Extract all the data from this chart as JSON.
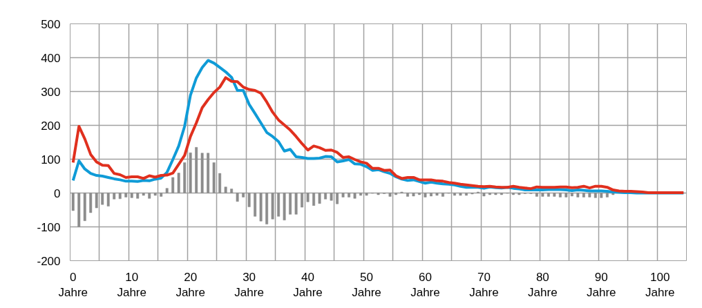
{
  "chart_data": {
    "type": "line",
    "categories": [
      "0 Jahre",
      null,
      null,
      null,
      null,
      null,
      null,
      null,
      null,
      null,
      "10 Jahre",
      null,
      null,
      null,
      null,
      null,
      null,
      null,
      null,
      null,
      "20 Jahre",
      null,
      null,
      null,
      null,
      null,
      null,
      null,
      null,
      null,
      "30 Jahre",
      null,
      null,
      null,
      null,
      null,
      null,
      null,
      null,
      null,
      "40 Jahre",
      null,
      null,
      null,
      null,
      null,
      null,
      null,
      null,
      null,
      "50 Jahre",
      null,
      null,
      null,
      null,
      null,
      null,
      null,
      null,
      null,
      "60 Jahre",
      null,
      null,
      null,
      null,
      null,
      null,
      null,
      null,
      null,
      "70 Jahre",
      null,
      null,
      null,
      null,
      null,
      null,
      null,
      null,
      null,
      "80 Jahre",
      null,
      null,
      null,
      null,
      null,
      null,
      null,
      null,
      null,
      "90 Jahre",
      null,
      null,
      null,
      null,
      null,
      null,
      null,
      null,
      null,
      "100 Jahre",
      null,
      null,
      null,
      null
    ],
    "ylim": [
      -200,
      500
    ],
    "yticks": [
      -200,
      -100,
      0,
      100,
      200,
      300,
      400,
      500
    ],
    "grid": true,
    "series": [
      {
        "type": "bar",
        "color": "#8c8c8c",
        "values": [
          -52,
          -100,
          -82,
          -58,
          -44,
          -34,
          -39,
          -18,
          -17,
          -12,
          -14,
          -16,
          -7,
          -16,
          -7,
          -10,
          14,
          46,
          59,
          90,
          119,
          135,
          118,
          118,
          90,
          58,
          18,
          12,
          -25,
          -12,
          -41,
          -69,
          -83,
          -92,
          -77,
          -69,
          -80,
          -63,
          -63,
          -42,
          -26,
          -37,
          -31,
          -18,
          -22,
          -32,
          -12,
          -12,
          -16,
          -7,
          -7,
          -1,
          -5,
          -2,
          -10,
          -5,
          3,
          -10,
          -9,
          -5,
          -12,
          -9,
          -7,
          -10,
          -1,
          -7,
          -7,
          -7,
          -3,
          3,
          -9,
          -5,
          -5,
          -5,
          -1,
          -5,
          -5,
          -2,
          -2,
          -10,
          -10,
          -10,
          -10,
          -12,
          -12,
          -9,
          -12,
          -12,
          -12,
          -14,
          -14,
          -12,
          -5,
          null,
          null,
          0,
          0,
          0,
          0,
          0,
          0,
          0,
          0,
          0,
          0
        ]
      },
      {
        "color": "#0f9bd7",
        "values": [
          37,
          95,
          71,
          58,
          52,
          50,
          46,
          42,
          39,
          35,
          35,
          34,
          37,
          36,
          41,
          44,
          61,
          99,
          139,
          197,
          289,
          340,
          371,
          392,
          384,
          371,
          358,
          342,
          303,
          303,
          262,
          235,
          207,
          179,
          167,
          152,
          124,
          129,
          107,
          105,
          102,
          102,
          103,
          108,
          107,
          92,
          95,
          99,
          86,
          85,
          78,
          67,
          69,
          63,
          58,
          48,
          41,
          37,
          39,
          34,
          29,
          32,
          29,
          27,
          26,
          24,
          20,
          17,
          17,
          17,
          14,
          18,
          16,
          15,
          17,
          14,
          12,
          9,
          9,
          9,
          9,
          10,
          10,
          10,
          9,
          7,
          9,
          8,
          6,
          6,
          6,
          5,
          3,
          2,
          1,
          1,
          0,
          0,
          0,
          0,
          0,
          0,
          0,
          0,
          0
        ]
      },
      {
        "color": "#e0301e",
        "values": [
          90,
          197,
          160,
          114,
          92,
          82,
          81,
          58,
          54,
          46,
          48,
          48,
          43,
          51,
          47,
          52,
          53,
          59,
          85,
          111,
          167,
          207,
          252,
          276,
          297,
          313,
          341,
          330,
          329,
          313,
          306,
          303,
          295,
          269,
          239,
          216,
          201,
          186,
          167,
          146,
          127,
          139,
          134,
          126,
          127,
          120,
          105,
          107,
          99,
          92,
          88,
          73,
          73,
          67,
          68,
          51,
          43,
          46,
          46,
          39,
          39,
          39,
          36,
          35,
          31,
          29,
          26,
          24,
          22,
          20,
          19,
          20,
          18,
          17,
          17,
          20,
          17,
          15,
          13,
          18,
          17,
          17,
          17,
          18,
          18,
          16,
          17,
          20,
          15,
          20,
          20,
          17,
          9,
          6,
          5,
          5,
          4,
          3,
          1,
          1,
          1,
          1,
          1,
          1,
          1
        ]
      }
    ]
  }
}
